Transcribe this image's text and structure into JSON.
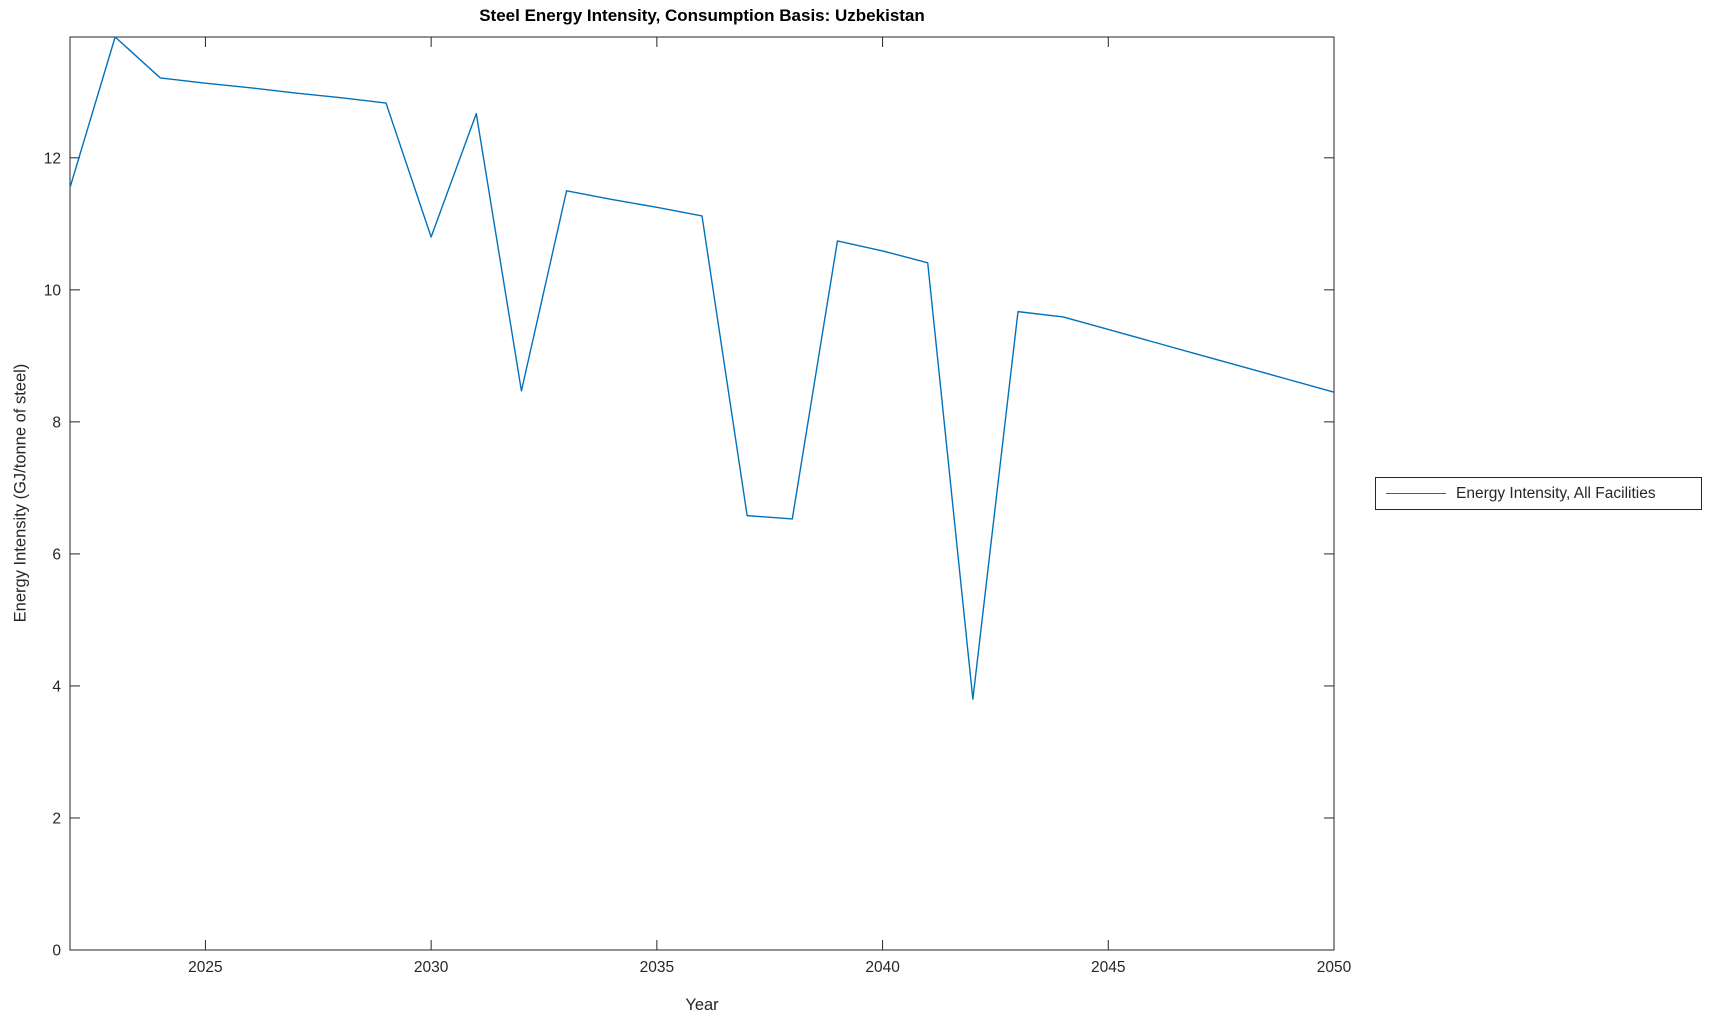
{
  "chart_data": {
    "type": "line",
    "title": "Steel Energy Intensity, Consumption Basis: Uzbekistan",
    "xlabel": "Year",
    "ylabel": "Energy Intensity (GJ/tonne of steel)",
    "xlim": [
      2022,
      2050
    ],
    "ylim": [
      0,
      13.83
    ],
    "x_ticks": [
      2025,
      2030,
      2035,
      2040,
      2045,
      2050
    ],
    "y_ticks": [
      0,
      2,
      4,
      6,
      8,
      10,
      12
    ],
    "grid": false,
    "legend_position": "outside-right",
    "line_color": "#0072BD",
    "axis_color": "#262626",
    "series": [
      {
        "name": "Energy Intensity, All Facilities",
        "x": [
          2022,
          2023,
          2024,
          2025,
          2026,
          2027,
          2028,
          2029,
          2030,
          2031,
          2032,
          2033,
          2034,
          2035,
          2036,
          2037,
          2038,
          2039,
          2040,
          2041,
          2042,
          2043,
          2044,
          2045,
          2046,
          2047,
          2048,
          2049,
          2050
        ],
        "values": [
          11.55,
          13.83,
          13.21,
          13.13,
          13.06,
          12.98,
          12.91,
          12.83,
          10.8,
          12.67,
          8.47,
          11.5,
          11.37,
          11.25,
          11.12,
          6.58,
          6.53,
          10.74,
          10.59,
          10.41,
          3.8,
          9.67,
          9.59,
          9.4,
          9.21,
          9.02,
          8.83,
          8.64,
          8.45
        ]
      }
    ]
  }
}
